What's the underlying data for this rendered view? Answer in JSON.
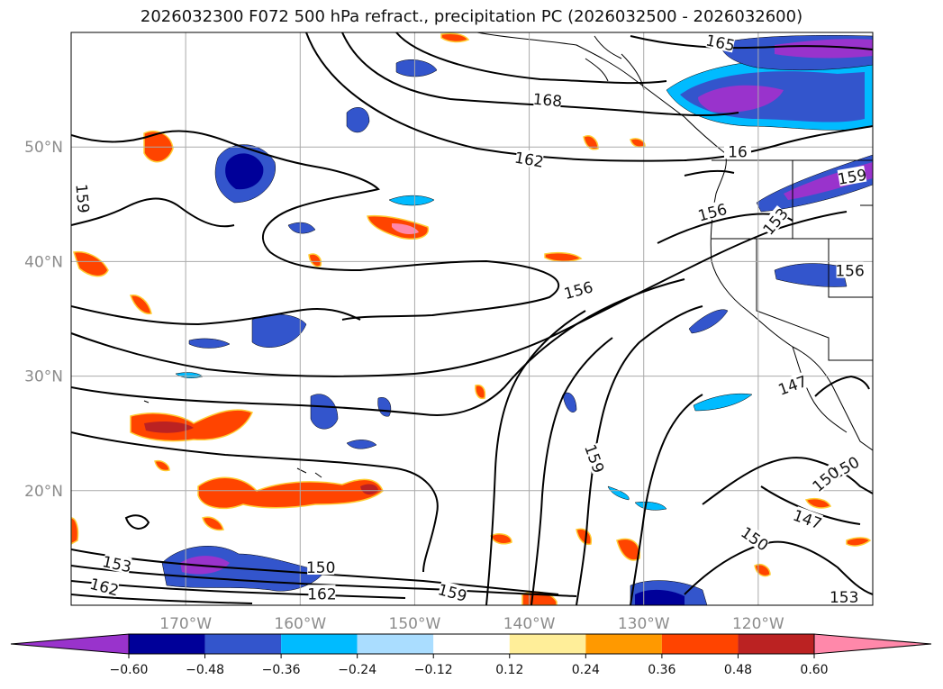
{
  "title": "2026032300 F072 500 hPa refract., precipitation PC (2026032500 - 2026032600)",
  "map": {
    "lon_range": [
      -180,
      -110
    ],
    "lat_range": [
      10,
      60
    ],
    "lon_ticks": [
      {
        "lon": -170,
        "label": "170°W"
      },
      {
        "lon": -160,
        "label": "160°W"
      },
      {
        "lon": -150,
        "label": "150°W"
      },
      {
        "lon": -140,
        "label": "140°W"
      },
      {
        "lon": -130,
        "label": "130°W"
      },
      {
        "lon": -120,
        "label": "120°W"
      }
    ],
    "lat_ticks": [
      {
        "lat": 50,
        "label": "50°N"
      },
      {
        "lat": 40,
        "label": "40°N"
      },
      {
        "lat": 30,
        "label": "30°N"
      },
      {
        "lat": 20,
        "label": "20°N"
      }
    ],
    "grid": true
  },
  "contour_labels": [
    {
      "text": "165",
      "lon": -123.3,
      "lat": 59.1,
      "rot": 12
    },
    {
      "text": "168",
      "lon": -138.4,
      "lat": 54.1,
      "rot": 5
    },
    {
      "text": "162",
      "lon": -140.0,
      "lat": 48.9,
      "rot": 10
    },
    {
      "text": "16",
      "lon": -121.8,
      "lat": 49.6,
      "rot": 0
    },
    {
      "text": "159",
      "lon": -111.8,
      "lat": 47.4,
      "rot": -10
    },
    {
      "text": "159",
      "lon": -179.0,
      "lat": 45.5,
      "rot": 85
    },
    {
      "text": "156",
      "lon": -124.0,
      "lat": 44.3,
      "rot": -15
    },
    {
      "text": "153",
      "lon": -118.5,
      "lat": 43.5,
      "rot": -50
    },
    {
      "text": "156",
      "lon": -112.0,
      "lat": 39.2,
      "rot": 0
    },
    {
      "text": "156",
      "lon": -135.7,
      "lat": 37.5,
      "rot": -15
    },
    {
      "text": "147",
      "lon": -117.0,
      "lat": 29.2,
      "rot": -20
    },
    {
      "text": "159",
      "lon": -134.3,
      "lat": 22.8,
      "rot": 70
    },
    {
      "text": "150",
      "lon": -112.4,
      "lat": 22.0,
      "rot": -30
    },
    {
      "text": "150",
      "lon": -114.1,
      "lat": 21.0,
      "rot": -40
    },
    {
      "text": "147",
      "lon": -115.7,
      "lat": 17.5,
      "rot": 20
    },
    {
      "text": "150",
      "lon": -120.3,
      "lat": 15.8,
      "rot": 35
    },
    {
      "text": "153",
      "lon": -176.0,
      "lat": 13.6,
      "rot": 12
    },
    {
      "text": "150",
      "lon": -158.2,
      "lat": 13.3,
      "rot": 0
    },
    {
      "text": "162",
      "lon": -177.1,
      "lat": 11.6,
      "rot": 15
    },
    {
      "text": "162",
      "lon": -158.1,
      "lat": 11.0,
      "rot": 0
    },
    {
      "text": "159",
      "lon": -146.7,
      "lat": 11.1,
      "rot": 15
    },
    {
      "text": "153",
      "lon": -112.5,
      "lat": 10.7,
      "rot": 0
    }
  ],
  "colorbar": {
    "ticks": [
      "−0.60",
      "−0.48",
      "−0.36",
      "−0.24",
      "−0.12",
      "0.12",
      "0.24",
      "0.36",
      "0.48",
      "0.60"
    ],
    "colors": [
      "#9933cc",
      "#000099",
      "#3355cc",
      "#00bbff",
      "#aaddff",
      "#ffffff",
      "#ffee99",
      "#ff9900",
      "#ff4400",
      "#bb2222",
      "#ff88aa"
    ]
  }
}
